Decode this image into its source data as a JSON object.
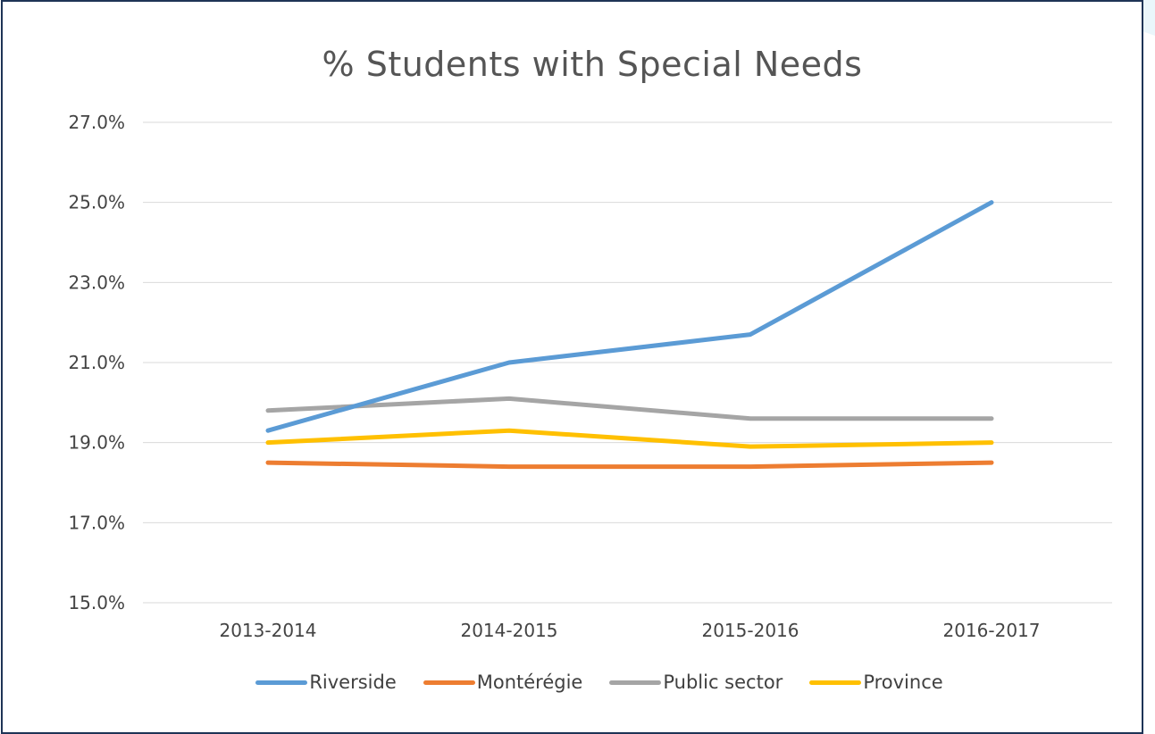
{
  "chart_data": {
    "type": "line",
    "title": "% Students with Special Needs",
    "xlabel": "",
    "ylabel": "",
    "categories": [
      "2013-2014",
      "2014-2015",
      "2015-2016",
      "2016-2017"
    ],
    "ylim": [
      15.0,
      27.0
    ],
    "yticks": [
      "27.0%",
      "25.0%",
      "23.0%",
      "21.0%",
      "19.0%",
      "17.0%",
      "15.0%"
    ],
    "grid": "horizontal",
    "legend_position": "bottom",
    "series": [
      {
        "name": "Riverside",
        "color": "#5b9bd5",
        "values": [
          19.3,
          21.0,
          21.7,
          25.0
        ]
      },
      {
        "name": "Montérégie",
        "color": "#ed7d31",
        "values": [
          18.5,
          18.4,
          18.4,
          18.5
        ]
      },
      {
        "name": "Public sector",
        "color": "#a5a5a5",
        "values": [
          19.8,
          20.1,
          19.6,
          19.6
        ]
      },
      {
        "name": "Province",
        "color": "#ffc000",
        "values": [
          19.0,
          19.3,
          18.9,
          19.0
        ]
      }
    ]
  }
}
